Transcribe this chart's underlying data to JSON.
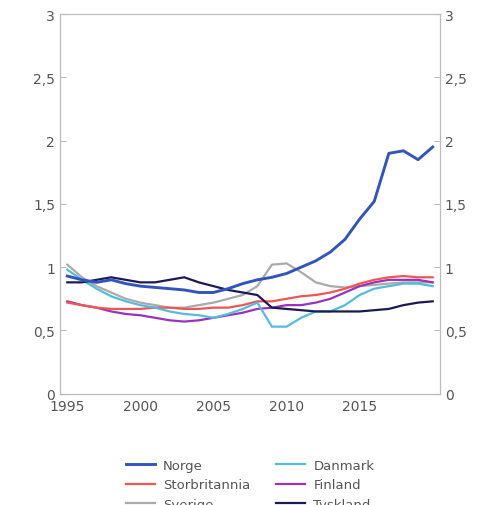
{
  "years": [
    1995,
    1996,
    1997,
    1998,
    1999,
    2000,
    2001,
    2002,
    2003,
    2004,
    2005,
    2006,
    2007,
    2008,
    2009,
    2010,
    2011,
    2012,
    2013,
    2014,
    2015,
    2016,
    2017,
    2018,
    2019,
    2020
  ],
  "norge": [
    0.93,
    0.9,
    0.88,
    0.9,
    0.87,
    0.85,
    0.84,
    0.83,
    0.82,
    0.8,
    0.8,
    0.83,
    0.87,
    0.9,
    0.92,
    0.95,
    1.0,
    1.05,
    1.12,
    1.22,
    1.38,
    1.52,
    1.9,
    1.92,
    1.85,
    1.95
  ],
  "sverige": [
    1.02,
    0.92,
    0.85,
    0.8,
    0.75,
    0.72,
    0.7,
    0.68,
    0.68,
    0.7,
    0.72,
    0.75,
    0.78,
    0.85,
    1.02,
    1.03,
    0.96,
    0.88,
    0.85,
    0.84,
    0.85,
    0.86,
    0.87,
    0.88,
    0.88,
    0.88
  ],
  "finland": [
    0.73,
    0.7,
    0.68,
    0.65,
    0.63,
    0.62,
    0.6,
    0.58,
    0.57,
    0.58,
    0.6,
    0.62,
    0.64,
    0.67,
    0.68,
    0.7,
    0.7,
    0.72,
    0.75,
    0.8,
    0.85,
    0.88,
    0.9,
    0.9,
    0.9,
    0.88
  ],
  "storbritannia": [
    0.72,
    0.7,
    0.68,
    0.67,
    0.67,
    0.67,
    0.68,
    0.68,
    0.67,
    0.67,
    0.68,
    0.68,
    0.7,
    0.73,
    0.73,
    0.75,
    0.77,
    0.78,
    0.8,
    0.83,
    0.87,
    0.9,
    0.92,
    0.93,
    0.92,
    0.92
  ],
  "danmark": [
    0.98,
    0.9,
    0.83,
    0.77,
    0.73,
    0.7,
    0.68,
    0.65,
    0.63,
    0.62,
    0.6,
    0.63,
    0.67,
    0.72,
    0.53,
    0.53,
    0.6,
    0.65,
    0.65,
    0.7,
    0.78,
    0.83,
    0.85,
    0.87,
    0.87,
    0.85
  ],
  "tyskland": [
    0.88,
    0.88,
    0.9,
    0.92,
    0.9,
    0.88,
    0.88,
    0.9,
    0.92,
    0.88,
    0.85,
    0.82,
    0.8,
    0.78,
    0.68,
    0.67,
    0.66,
    0.65,
    0.65,
    0.65,
    0.65,
    0.66,
    0.67,
    0.7,
    0.72,
    0.73
  ],
  "colors": {
    "norge": "#3355bb",
    "sverige": "#aaaaaa",
    "finland": "#9933bb",
    "storbritannia": "#ee5555",
    "danmark": "#55bbdd",
    "tyskland": "#1a1a55"
  },
  "ylim": [
    0,
    3
  ],
  "yticks": [
    0,
    0.5,
    1.0,
    1.5,
    2.0,
    2.5,
    3.0
  ],
  "ytick_labels": [
    "0",
    "0,5",
    "1",
    "1,5",
    "2",
    "2,5",
    "3"
  ],
  "xlim": [
    1994.5,
    2020.5
  ],
  "xticks": [
    1995,
    2000,
    2005,
    2010,
    2015
  ],
  "linewidth": 1.6,
  "spine_color": "#bbbbbb",
  "tick_color": "#bbbbbb",
  "label_color": "#555555"
}
